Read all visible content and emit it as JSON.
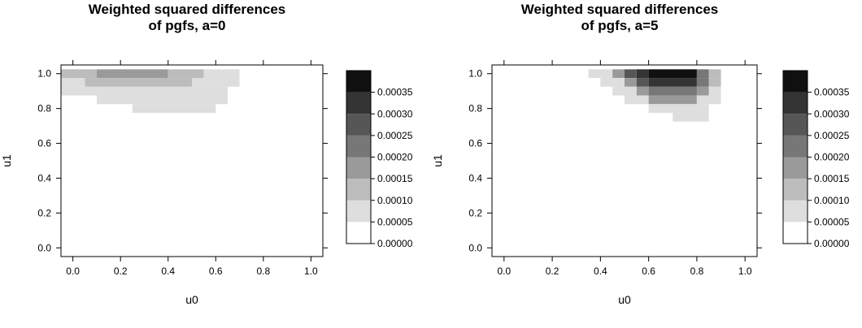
{
  "chart_data": [
    {
      "type": "heatmap",
      "title": [
        "Weighted squared differences",
        "of pgfs, a=0"
      ],
      "xlabel": "u0",
      "ylabel": "u1",
      "xlim": [
        -0.05,
        1.05
      ],
      "ylim": [
        -0.05,
        1.05
      ],
      "x_ticks": [
        "0.0",
        "0.2",
        "0.4",
        "0.6",
        "0.8",
        "1.0"
      ],
      "y_ticks": [
        "0.0",
        "0.2",
        "0.4",
        "0.6",
        "0.8",
        "1.0"
      ],
      "cell_width": 0.05,
      "cell_height": 0.05,
      "levels": [
        0,
        5e-05,
        0.0001,
        0.00015,
        0.0002,
        0.00025,
        0.0003,
        0.00035,
        0.0004
      ],
      "colors": [
        "#ffffff",
        "#dedede",
        "#bcbcbc",
        "#9a9a9a",
        "#777777",
        "#565656",
        "#343434",
        "#101010"
      ],
      "legend_ticks": [
        "0.00000",
        "0.00005",
        "0.00010",
        "0.00015",
        "0.00020",
        "0.00025",
        "0.00030",
        "0.00035"
      ],
      "cells": [
        {
          "x0": -0.05,
          "x1": 0.1,
          "y0": 0.975,
          "y1": 1.025,
          "level": 2
        },
        {
          "x0": 0.1,
          "x1": 0.4,
          "y0": 0.975,
          "y1": 1.025,
          "level": 3
        },
        {
          "x0": 0.4,
          "x1": 0.55,
          "y0": 0.975,
          "y1": 1.025,
          "level": 2
        },
        {
          "x0": 0.55,
          "x1": 0.7,
          "y0": 0.975,
          "y1": 1.025,
          "level": 1
        },
        {
          "x0": -0.05,
          "x1": 0.05,
          "y0": 0.925,
          "y1": 0.975,
          "level": 1
        },
        {
          "x0": 0.05,
          "x1": 0.5,
          "y0": 0.925,
          "y1": 0.975,
          "level": 2
        },
        {
          "x0": 0.5,
          "x1": 0.7,
          "y0": 0.925,
          "y1": 0.975,
          "level": 1
        },
        {
          "x0": -0.05,
          "x1": 0.65,
          "y0": 0.875,
          "y1": 0.925,
          "level": 1
        },
        {
          "x0": 0.1,
          "x1": 0.65,
          "y0": 0.825,
          "y1": 0.875,
          "level": 1
        },
        {
          "x0": 0.25,
          "x1": 0.6,
          "y0": 0.775,
          "y1": 0.825,
          "level": 1
        }
      ]
    },
    {
      "type": "heatmap",
      "title": [
        "Weighted squared differences",
        "of pgfs, a=5"
      ],
      "xlabel": "u0",
      "ylabel": "u1",
      "xlim": [
        -0.05,
        1.05
      ],
      "ylim": [
        -0.05,
        1.05
      ],
      "x_ticks": [
        "0.0",
        "0.2",
        "0.4",
        "0.6",
        "0.8",
        "1.0"
      ],
      "y_ticks": [
        "0.0",
        "0.2",
        "0.4",
        "0.6",
        "0.8",
        "1.0"
      ],
      "cell_width": 0.05,
      "cell_height": 0.05,
      "levels": [
        0,
        5e-05,
        0.0001,
        0.00015,
        0.0002,
        0.00025,
        0.0003,
        0.00035,
        0.0004
      ],
      "colors": [
        "#ffffff",
        "#dedede",
        "#bcbcbc",
        "#9a9a9a",
        "#777777",
        "#565656",
        "#343434",
        "#101010"
      ],
      "legend_ticks": [
        "0.00000",
        "0.00005",
        "0.00010",
        "0.00015",
        "0.00020",
        "0.00025",
        "0.00030",
        "0.00035"
      ],
      "cells": [
        {
          "x0": 0.35,
          "x1": 0.45,
          "y0": 0.975,
          "y1": 1.025,
          "level": 1
        },
        {
          "x0": 0.45,
          "x1": 0.5,
          "y0": 0.975,
          "y1": 1.025,
          "level": 3
        },
        {
          "x0": 0.5,
          "x1": 0.55,
          "y0": 0.975,
          "y1": 1.025,
          "level": 5
        },
        {
          "x0": 0.55,
          "x1": 0.6,
          "y0": 0.975,
          "y1": 1.025,
          "level": 6
        },
        {
          "x0": 0.6,
          "x1": 0.8,
          "y0": 0.975,
          "y1": 1.025,
          "level": 7
        },
        {
          "x0": 0.8,
          "x1": 0.85,
          "y0": 0.975,
          "y1": 1.025,
          "level": 4
        },
        {
          "x0": 0.85,
          "x1": 0.9,
          "y0": 0.975,
          "y1": 1.025,
          "level": 2
        },
        {
          "x0": 0.4,
          "x1": 0.5,
          "y0": 0.925,
          "y1": 0.975,
          "level": 1
        },
        {
          "x0": 0.5,
          "x1": 0.55,
          "y0": 0.925,
          "y1": 0.975,
          "level": 3
        },
        {
          "x0": 0.55,
          "x1": 0.6,
          "y0": 0.925,
          "y1": 0.975,
          "level": 5
        },
        {
          "x0": 0.6,
          "x1": 0.8,
          "y0": 0.925,
          "y1": 0.975,
          "level": 6
        },
        {
          "x0": 0.8,
          "x1": 0.85,
          "y0": 0.925,
          "y1": 0.975,
          "level": 4
        },
        {
          "x0": 0.85,
          "x1": 0.9,
          "y0": 0.925,
          "y1": 0.975,
          "level": 2
        },
        {
          "x0": 0.45,
          "x1": 0.55,
          "y0": 0.875,
          "y1": 0.925,
          "level": 1
        },
        {
          "x0": 0.55,
          "x1": 0.6,
          "y0": 0.875,
          "y1": 0.925,
          "level": 3
        },
        {
          "x0": 0.6,
          "x1": 0.8,
          "y0": 0.875,
          "y1": 0.925,
          "level": 4
        },
        {
          "x0": 0.8,
          "x1": 0.85,
          "y0": 0.875,
          "y1": 0.925,
          "level": 3
        },
        {
          "x0": 0.85,
          "x1": 0.9,
          "y0": 0.875,
          "y1": 0.925,
          "level": 1
        },
        {
          "x0": 0.5,
          "x1": 0.6,
          "y0": 0.825,
          "y1": 0.875,
          "level": 1
        },
        {
          "x0": 0.6,
          "x1": 0.8,
          "y0": 0.825,
          "y1": 0.875,
          "level": 3
        },
        {
          "x0": 0.8,
          "x1": 0.9,
          "y0": 0.825,
          "y1": 0.875,
          "level": 1
        },
        {
          "x0": 0.6,
          "x1": 0.85,
          "y0": 0.775,
          "y1": 0.825,
          "level": 1
        },
        {
          "x0": 0.7,
          "x1": 0.85,
          "y0": 0.725,
          "y1": 0.775,
          "level": 1
        }
      ]
    }
  ]
}
